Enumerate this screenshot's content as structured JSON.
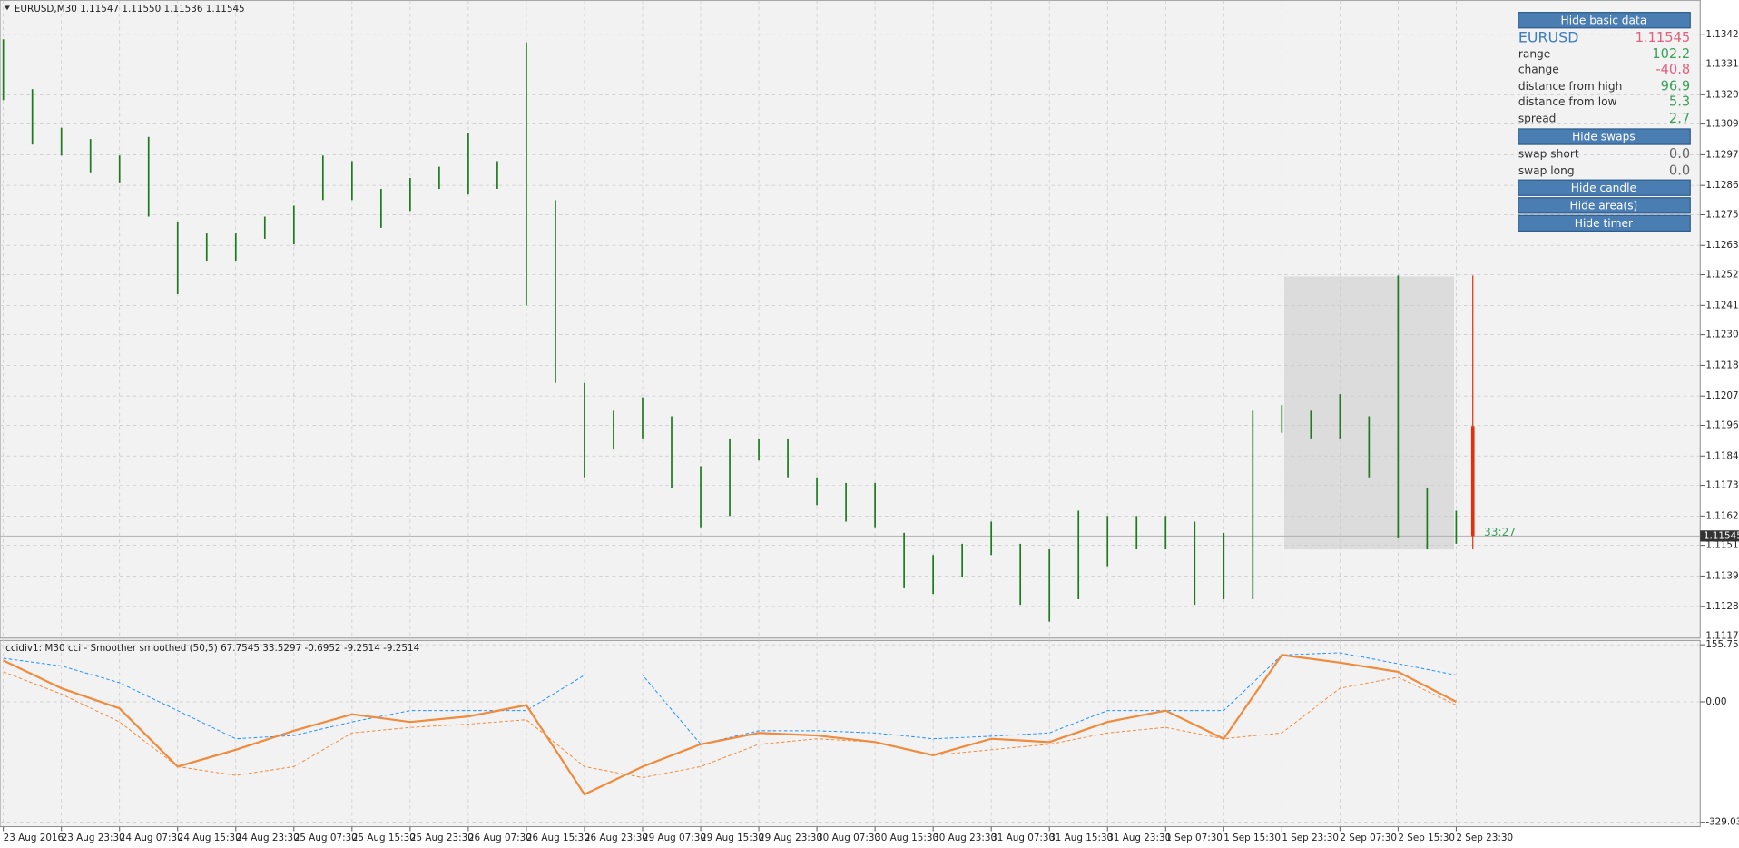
{
  "chart_data": [
    {
      "type": "ohlc",
      "title": "EURUSD,M30  1.11547 1.11550 1.11536 1.11545",
      "color": "#1f7a1f",
      "high": [
        1.13408,
        1.13221,
        1.13076,
        1.13034,
        1.12972,
        1.13042,
        1.12722,
        1.1268,
        1.1268,
        1.12743,
        1.12784,
        1.12972,
        1.12951,
        1.12847,
        1.12888,
        1.1293,
        1.13055,
        1.12951,
        1.13396,
        1.12805,
        1.12119,
        1.12015,
        1.12065,
        1.11994,
        1.11807,
        1.11911,
        1.11911,
        1.11911,
        1.11765,
        1.11744,
        1.11744,
        1.11557,
        1.11474,
        1.11516,
        1.11599,
        1.11516,
        1.11495,
        1.1164,
        1.1162,
        1.1162,
        1.1162,
        1.11599,
        1.11557,
        1.12015,
        1.12036,
        1.12015,
        1.12077,
        1.11994,
        1.12522,
        1.11724,
        1.1164
      ],
      "low": [
        1.1318,
        1.13013,
        1.12972,
        1.12909,
        1.12868,
        1.12743,
        1.12452,
        1.12576,
        1.12576,
        1.1266,
        1.12639,
        1.12805,
        1.12805,
        1.12701,
        1.12764,
        1.12847,
        1.12826,
        1.12847,
        1.1241,
        1.12119,
        1.11765,
        1.11869,
        1.11911,
        1.11724,
        1.11578,
        1.1162,
        1.11828,
        1.11765,
        1.11661,
        1.11599,
        1.11578,
        1.11349,
        1.11328,
        1.11391,
        1.11474,
        1.11287,
        1.11224,
        1.11308,
        1.11432,
        1.11495,
        1.11495,
        1.11287,
        1.11308,
        1.11308,
        1.11932,
        1.11911,
        1.11911,
        1.11765,
        1.11536,
        1.11495,
        1.11516
      ],
      "last_price": 1.11545,
      "current_bar": {
        "high": 1.12522,
        "low": 1.11495,
        "open": 1.11957,
        "color": "#e03010"
      },
      "timer": "33:27",
      "ylim": [
        1.11162,
        1.13542
      ],
      "yticks": [
        1.13425,
        1.13315,
        {
          "value": 1.132,
          "label": "1.13200"
        },
        {
          "value": 1.1309,
          "label": "1.13090"
        },
        1.12975,
        {
          "value": 1.1286,
          "label": "1.12860"
        },
        {
          "value": 1.1275,
          "label": "1.12750"
        },
        1.12635,
        1.12525,
        {
          "value": 1.1241,
          "label": "1.12410"
        },
        {
          "value": 1.123,
          "label": "1.12300"
        },
        1.12185,
        {
          "value": 1.1207,
          "label": "1.12070"
        },
        {
          "value": 1.1196,
          "label": "1.11960"
        },
        1.11845,
        1.11735,
        {
          "value": 1.1162,
          "label": "1.11620"
        },
        {
          "value": 1.1151,
          "label": "1.11510"
        },
        1.11395,
        {
          "value": 1.1128,
          "label": "1.11280"
        },
        {
          "value": 1.1117,
          "label": "1.11170"
        }
      ],
      "grid": true
    },
    {
      "type": "line",
      "title": "ccidiv1: M30 cci  - Smoother smoothed (50,5) 67.7545 33.5297 -0.6952 -9.2514 -9.2514",
      "categories": [
        "23 Aug 2016",
        "23 Aug 23:30",
        "24 Aug 07:30",
        "24 Aug 15:30",
        "24 Aug 23:30",
        "25 Aug 07:30",
        "25 Aug 15:30",
        "25 Aug 23:30",
        "26 Aug 07:30",
        "26 Aug 15:30",
        "26 Aug 23:30",
        "29 Aug 07:30",
        "29 Aug 15:30",
        "29 Aug 23:30",
        "30 Aug 07:30",
        "30 Aug 15:30",
        "30 Aug 23:30",
        "31 Aug 07:30",
        "31 Aug 15:30",
        "31 Aug 23:30",
        "1 Sep 07:30",
        "1 Sep 15:30",
        "1 Sep 23:30",
        "2 Sep 07:30",
        "2 Sep 15:30",
        "2 Sep 23:30"
      ],
      "series": [
        {
          "color": "#1e90ff",
          "dashed": true,
          "values": [
            119,
            98,
            52,
            -24,
            -101,
            -92,
            -55,
            -24,
            -24,
            -24,
            73,
            73,
            -116,
            -79,
            -79,
            -85,
            -101,
            -94,
            -85,
            -24,
            -24,
            -24,
            128,
            134,
            104,
            73
          ]
        },
        {
          "color": "#f08a3c",
          "dashed": true,
          "values": [
            82,
            21,
            -55,
            -177,
            -201,
            -177,
            -85,
            -70,
            -61,
            -49,
            -177,
            -207,
            -177,
            -116,
            -101,
            -110,
            -146,
            -131,
            -116,
            -85,
            -70,
            -101,
            -85,
            37,
            67,
            -9
          ]
        },
        {
          "color": "#f08a3c",
          "dashed": false,
          "values": [
            113,
            37,
            -18,
            -177,
            -131,
            -79,
            -34,
            -55,
            -40,
            -9,
            -253,
            -177,
            -116,
            -85,
            -92,
            -110,
            -146,
            -101,
            -110,
            -55,
            -24,
            -101,
            128,
            107,
            82,
            0
          ]
        }
      ],
      "ylim": [
        -329.0326,
        155.7578
      ],
      "yticks": [
        155.7578,
        {
          "value": 0,
          "label": "0.00"
        },
        -329.0326
      ],
      "grid": true
    }
  ],
  "panel": {
    "buttons": [
      "Hide basic data",
      "Hide swaps",
      "Hide candle",
      "Hide area(s)",
      "Hide timer"
    ],
    "symbol": "EURUSD",
    "price": "1.11545",
    "rows": [
      {
        "label": "range",
        "value": "102.2"
      },
      {
        "label": "change",
        "value": "-40.8"
      },
      {
        "label": "distance from high",
        "value": "96.9"
      },
      {
        "label": "distance from low",
        "value": "5.3"
      },
      {
        "label": "spread",
        "value": "2.7"
      },
      {
        "label": "swap short",
        "value": "0.0"
      },
      {
        "label": "swap long",
        "value": "0.0"
      }
    ]
  }
}
